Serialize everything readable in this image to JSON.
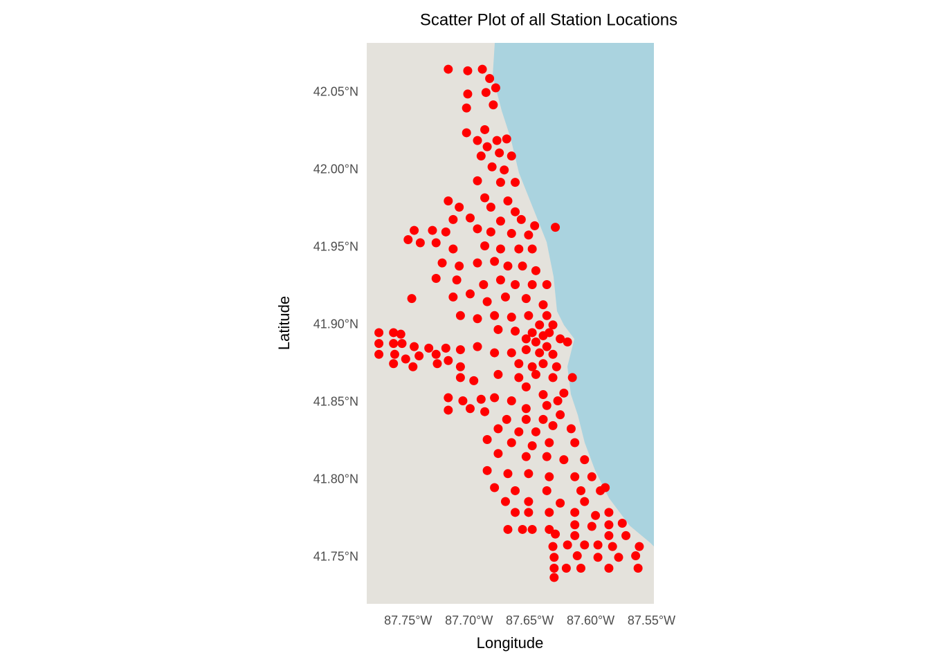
{
  "chart_data": {
    "type": "scatter",
    "title": "Scatter Plot of all Station Locations",
    "xlabel": "Longitude",
    "ylabel": "Latitude",
    "color": "#ff0000",
    "grid": false,
    "xlim": [
      -87.784,
      -87.548
    ],
    "ylim": [
      41.72,
      42.082
    ],
    "xticks": [
      {
        "value": -87.75,
        "label": "87.75°W"
      },
      {
        "value": -87.7,
        "label": "87.70°W"
      },
      {
        "value": -87.65,
        "label": "87.65°W"
      },
      {
        "value": -87.6,
        "label": "87.60°W"
      },
      {
        "value": -87.55,
        "label": "87.55°W"
      }
    ],
    "yticks": [
      {
        "value": 41.75,
        "label": "41.75°N"
      },
      {
        "value": 41.8,
        "label": "41.80°N"
      },
      {
        "value": 41.85,
        "label": "41.85°N"
      },
      {
        "value": 41.9,
        "label": "41.90°N"
      },
      {
        "value": 41.95,
        "label": "41.95°N"
      },
      {
        "value": 42.0,
        "label": "42.00°N"
      },
      {
        "value": 42.05,
        "label": "42.05°N"
      }
    ],
    "x": [
      -87.717,
      -87.701,
      -87.689,
      -87.683,
      -87.701,
      -87.686,
      -87.678,
      -87.702,
      -87.68,
      -87.702,
      -87.687,
      -87.693,
      -87.677,
      -87.669,
      -87.685,
      -87.675,
      -87.69,
      -87.665,
      -87.681,
      -87.671,
      -87.693,
      -87.674,
      -87.662,
      -87.687,
      -87.668,
      -87.717,
      -87.708,
      -87.682,
      -87.662,
      -87.699,
      -87.713,
      -87.674,
      -87.657,
      -87.646,
      -87.629,
      -87.745,
      -87.73,
      -87.719,
      -87.693,
      -87.682,
      -87.665,
      -87.651,
      -87.75,
      -87.74,
      -87.727,
      -87.713,
      -87.687,
      -87.674,
      -87.659,
      -87.648,
      -87.722,
      -87.708,
      -87.693,
      -87.679,
      -87.668,
      -87.656,
      -87.645,
      -87.727,
      -87.71,
      -87.688,
      -87.674,
      -87.662,
      -87.648,
      -87.636,
      -87.747,
      -87.713,
      -87.699,
      -87.685,
      -87.67,
      -87.653,
      -87.639,
      -87.707,
      -87.693,
      -87.679,
      -87.665,
      -87.651,
      -87.636,
      -87.631,
      -87.676,
      -87.662,
      -87.648,
      -87.639,
      -87.625,
      -87.619,
      -87.774,
      -87.762,
      -87.756,
      -87.774,
      -87.762,
      -87.755,
      -87.745,
      -87.733,
      -87.719,
      -87.707,
      -87.693,
      -87.774,
      -87.761,
      -87.752,
      -87.741,
      -87.727,
      -87.717,
      -87.762,
      -87.746,
      -87.726,
      -87.679,
      -87.665,
      -87.653,
      -87.642,
      -87.631,
      -87.636,
      -87.645,
      -87.634,
      -87.707,
      -87.696,
      -87.707,
      -87.676,
      -87.659,
      -87.645,
      -87.631,
      -87.615,
      -87.653,
      -87.639,
      -87.622,
      -87.717,
      -87.705,
      -87.69,
      -87.679,
      -87.665,
      -87.717,
      -87.699,
      -87.687,
      -87.653,
      -87.636,
      -87.627,
      -87.669,
      -87.653,
      -87.639,
      -87.625,
      -87.676,
      -87.659,
      -87.645,
      -87.631,
      -87.616,
      -87.685,
      -87.665,
      -87.648,
      -87.634,
      -87.613,
      -87.676,
      -87.653,
      -87.636,
      -87.622,
      -87.605,
      -87.685,
      -87.668,
      -87.651,
      -87.634,
      -87.613,
      -87.599,
      -87.679,
      -87.662,
      -87.636,
      -87.608,
      -87.592,
      -87.67,
      -87.651,
      -87.625,
      -87.605,
      -87.588,
      -87.662,
      -87.651,
      -87.634,
      -87.613,
      -87.596,
      -87.585,
      -87.668,
      -87.656,
      -87.648,
      -87.634,
      -87.613,
      -87.599,
      -87.585,
      -87.574,
      -87.629,
      -87.613,
      -87.585,
      -87.571,
      -87.631,
      -87.619,
      -87.605,
      -87.594,
      -87.582,
      -87.56,
      -87.63,
      -87.611,
      -87.594,
      -87.577,
      -87.563,
      -87.63,
      -87.62,
      -87.608,
      -87.585,
      -87.561,
      -87.63,
      -87.642,
      -87.653,
      -87.639,
      -87.648,
      -87.628,
      -87.659
    ],
    "values": [
      42.065,
      42.064,
      42.065,
      42.059,
      42.049,
      42.05,
      42.053,
      42.04,
      42.042,
      42.024,
      42.026,
      42.019,
      42.019,
      42.02,
      42.015,
      42.011,
      42.009,
      42.009,
      42.002,
      42.0,
      41.993,
      41.992,
      41.992,
      41.982,
      41.98,
      41.98,
      41.976,
      41.976,
      41.973,
      41.969,
      41.968,
      41.967,
      41.968,
      41.964,
      41.963,
      41.961,
      41.961,
      41.96,
      41.962,
      41.96,
      41.959,
      41.958,
      41.955,
      41.953,
      41.953,
      41.949,
      41.951,
      41.949,
      41.949,
      41.949,
      41.94,
      41.938,
      41.94,
      41.941,
      41.938,
      41.938,
      41.935,
      41.93,
      41.929,
      41.926,
      41.929,
      41.926,
      41.926,
      41.926,
      41.917,
      41.918,
      41.92,
      41.915,
      41.918,
      41.917,
      41.913,
      41.906,
      41.904,
      41.906,
      41.905,
      41.906,
      41.906,
      41.9,
      41.897,
      41.896,
      41.895,
      41.893,
      41.891,
      41.889,
      41.895,
      41.895,
      41.894,
      41.888,
      41.888,
      41.888,
      41.886,
      41.885,
      41.885,
      41.884,
      41.886,
      41.881,
      41.881,
      41.878,
      41.88,
      41.881,
      41.877,
      41.875,
      41.873,
      41.875,
      41.882,
      41.882,
      41.884,
      41.882,
      41.881,
      41.886,
      41.889,
      41.895,
      41.873,
      41.864,
      41.866,
      41.868,
      41.866,
      41.868,
      41.866,
      41.866,
      41.86,
      41.855,
      41.856,
      41.853,
      41.851,
      41.852,
      41.853,
      41.851,
      41.845,
      41.846,
      41.844,
      41.846,
      41.848,
      41.851,
      41.839,
      41.839,
      41.839,
      41.842,
      41.833,
      41.831,
      41.831,
      41.835,
      41.833,
      41.826,
      41.824,
      41.822,
      41.824,
      41.824,
      41.817,
      41.815,
      41.815,
      41.813,
      41.813,
      41.806,
      41.804,
      41.804,
      41.802,
      41.802,
      41.802,
      41.795,
      41.793,
      41.793,
      41.793,
      41.793,
      41.786,
      41.786,
      41.785,
      41.786,
      41.795,
      41.779,
      41.779,
      41.779,
      41.779,
      41.777,
      41.779,
      41.768,
      41.768,
      41.768,
      41.768,
      41.771,
      41.77,
      41.771,
      41.772,
      41.765,
      41.764,
      41.764,
      41.764,
      41.757,
      41.758,
      41.758,
      41.758,
      41.757,
      41.757,
      41.75,
      41.751,
      41.75,
      41.75,
      41.751,
      41.743,
      41.743,
      41.743,
      41.743,
      41.743,
      41.737,
      41.9,
      41.891,
      41.875,
      41.873,
      41.873,
      41.875
    ]
  }
}
